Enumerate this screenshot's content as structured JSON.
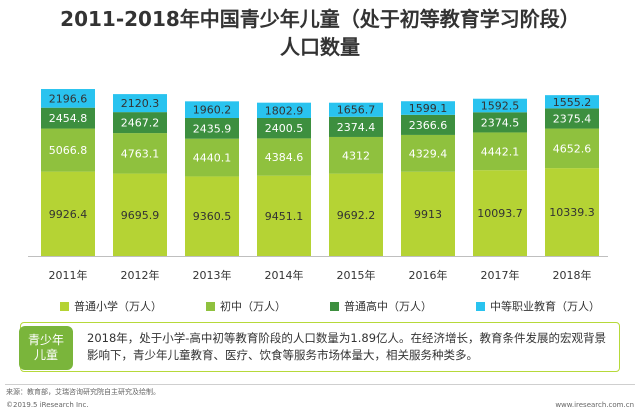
{
  "title_line1": "2011-2018年中国青少年儿童（处于初等教育学习阶段）",
  "title_line2": "人口数量",
  "chart_data": {
    "type": "bar",
    "stacked": true,
    "categories": [
      "2011年",
      "2012年",
      "2013年",
      "2014年",
      "2015年",
      "2016年",
      "2017年",
      "2018年"
    ],
    "series": [
      {
        "name": "普通小学（万人）",
        "color": "#b5d334",
        "values": [
          9926.4,
          9695.9,
          9360.5,
          9451.1,
          9692.2,
          9913,
          10093.7,
          10339.3
        ]
      },
      {
        "name": "初中（万人）",
        "color": "#8fc13e",
        "values": [
          5066.8,
          4763.1,
          4440.1,
          4384.6,
          4312,
          4329.4,
          4442.1,
          4652.6
        ]
      },
      {
        "name": "普通高中（万人）",
        "color": "#3d8f3f",
        "values": [
          2454.8,
          2467.2,
          2435.9,
          2400.5,
          2374.4,
          2366.6,
          2374.5,
          2375.4
        ]
      },
      {
        "name": "中等职业教育（万人）",
        "color": "#29c3ef",
        "values": [
          2196.6,
          2120.3,
          1960.2,
          1802.9,
          1656.7,
          1599.1,
          1592.5,
          1555.2
        ]
      }
    ],
    "label_strings": [
      [
        "9926.4",
        "9695.9",
        "9360.5",
        "9451.1",
        "9692.2",
        "9913",
        "10093.7",
        "10339.3"
      ],
      [
        "5066.8",
        "4763.1",
        "4440.1",
        "4384.6",
        "4312",
        "4329.4",
        "4442.1",
        "4652.6"
      ],
      [
        "2454.8",
        "2467.2",
        "2435.9",
        "2400.5",
        "2374.4",
        "2366.6",
        "2374.5",
        "2375.4"
      ],
      [
        "2196.6",
        "2120.3",
        "1960.2",
        "1802.9",
        "1656.7",
        "1599.1",
        "1592.5",
        "1555.2"
      ]
    ],
    "ylim": [
      0,
      20000
    ],
    "legend_position": "bottom",
    "grid": false
  },
  "callout": {
    "badge": "青少年儿童",
    "text": "2018年，处于小学-高中初等教育阶段的人口数量为1.89亿人。在经济增长，教育条件发展的宏观背景影响下，青少年儿童教育、医疗、饮食等服务市场体量大，相关服务种类多。"
  },
  "footer": {
    "source": "来源：教育部，艾瑞咨询研究院自主研究及绘制。",
    "copyright": "©2019.5 iResearch Inc.",
    "website": "www.iresearch.com.cn"
  }
}
